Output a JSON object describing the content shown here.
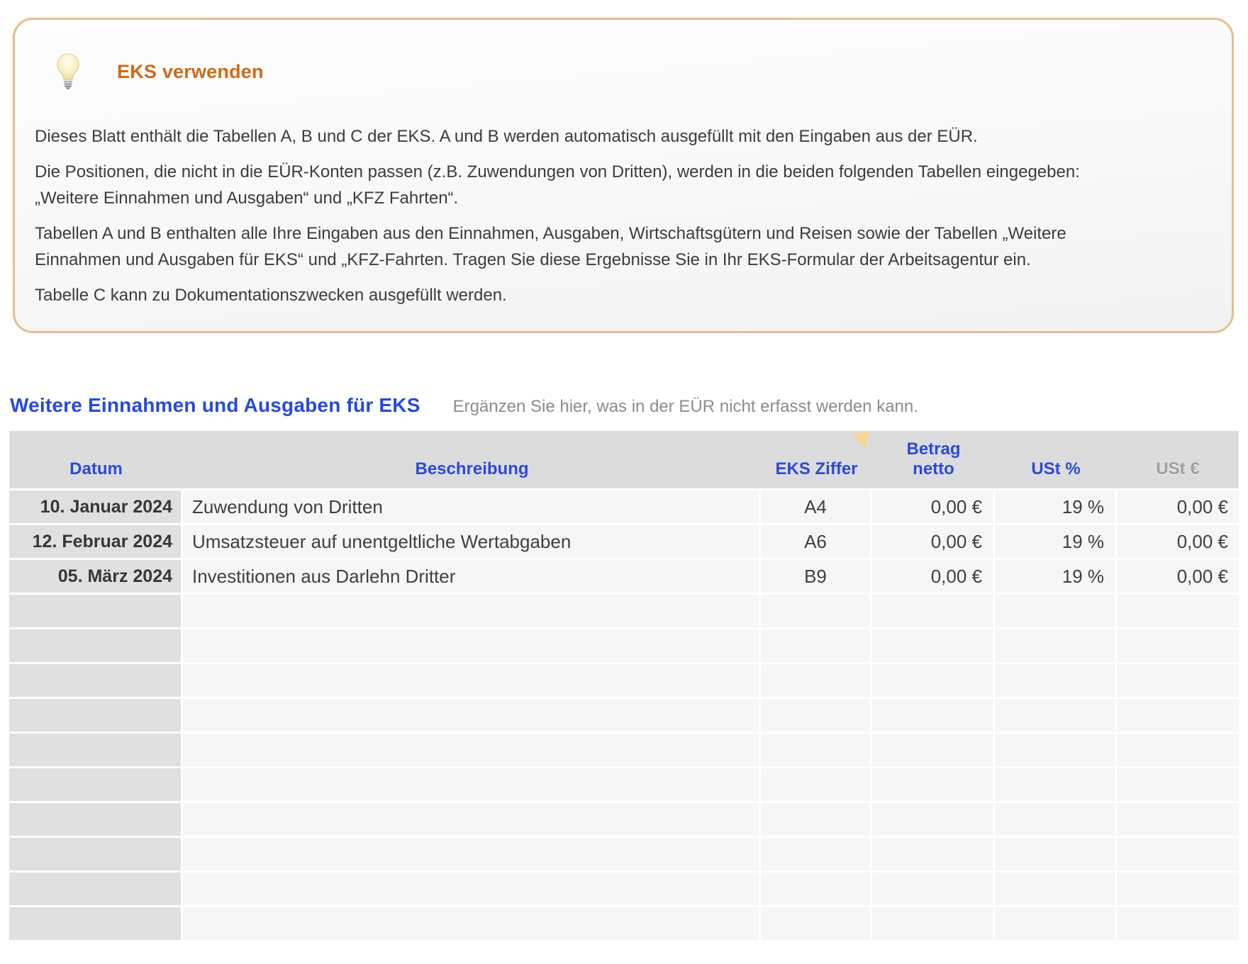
{
  "infobox": {
    "icon": "lightbulb-icon",
    "title": "EKS verwenden",
    "p1": "Dieses Blatt enthält die Tabellen A, B und C der EKS. A und B werden automatisch ausgefüllt mit den Eingaben aus der EÜR.",
    "p2": "Die Positionen, die nicht in die EÜR-Konten passen (z.B. Zuwendungen von Dritten), werden in die beiden folgenden Tabellen eingegeben: „Weitere Einnahmen und Ausgaben“ und „KFZ Fahrten“.",
    "p3": "Tabellen A und B enthalten alle Ihre Eingaben aus den Einnahmen, Ausgaben, Wirtschaftsgütern und Reisen sowie der Tabellen „Weitere Einnahmen und Ausgaben für EKS“ und „KFZ-Fahrten. Tragen Sie diese Ergebnisse Sie in Ihr EKS-Formular der Arbeitsagentur ein.",
    "p4": "Tabelle C kann zu Dokumentationszwecken ausgefüllt werden."
  },
  "section": {
    "title": "Weitere Einnahmen und Ausgaben für EKS",
    "subtitle": "Ergänzen Sie hier, was in der EÜR nicht erfasst werden kann."
  },
  "table": {
    "headers": {
      "datum": "Datum",
      "beschreibung": "Beschreibung",
      "eks_ziffer": "EKS Ziffer",
      "betrag_line1": "Betrag",
      "betrag_line2": "netto",
      "ust_prozent": "USt %",
      "ust_euro": "USt €"
    },
    "comment_marker": "yellow-triangle-indicator",
    "rows": [
      {
        "datum": "10. Januar 2024",
        "beschreibung": "Zuwendung von Dritten",
        "eks_ziffer": "A4",
        "betrag_netto": "0,00 €",
        "ust_prozent": "19 %",
        "ust_euro": "0,00 €"
      },
      {
        "datum": "12. Februar 2024",
        "beschreibung": "Umsatzsteuer auf unentgeltliche Wertabgaben",
        "eks_ziffer": "A6",
        "betrag_netto": "0,00 €",
        "ust_prozent": "19 %",
        "ust_euro": "0,00 €"
      },
      {
        "datum": "05. März 2024",
        "beschreibung": "Investitionen aus Darlehn Dritter",
        "eks_ziffer": "B9",
        "betrag_netto": "0,00 €",
        "ust_prozent": "19 %",
        "ust_euro": "0,00 €"
      }
    ],
    "empty_row_count": 10
  },
  "colors": {
    "accent_orange": "#d06a18",
    "box_border": "#e8bd8a",
    "accent_blue": "#2549df",
    "header_blue": "#2b4bd7",
    "header_gray_text": "#9e9e9e",
    "header_bg": "#dcdcdd",
    "date_col_bg": "#e0e0e1",
    "cell_bg": "#f6f6f7",
    "triangle": "#f7d68f",
    "body_text": "#3c3c3c"
  }
}
